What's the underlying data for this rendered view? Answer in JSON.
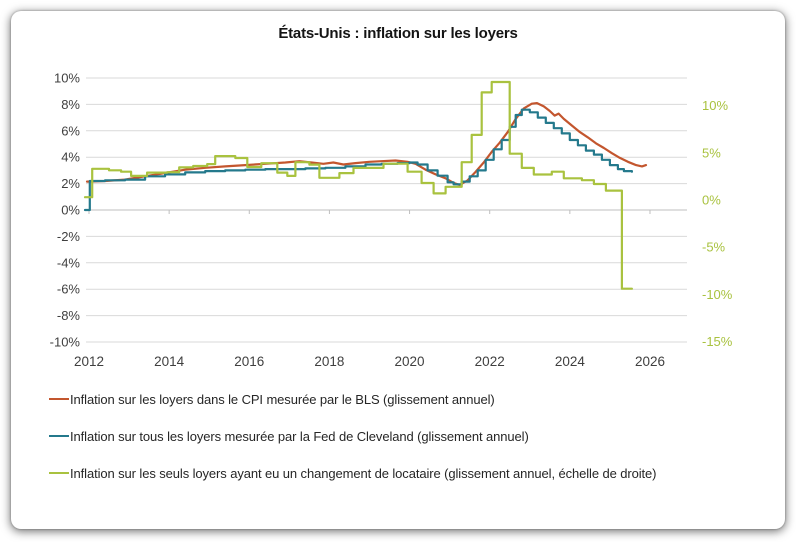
{
  "chart": {
    "title": "États-Unis : inflation sur les loyers"
  },
  "chart_data": {
    "type": "line",
    "title": "États-Unis : inflation sur les loyers",
    "xlabel": "",
    "ylabel_left": "%",
    "ylabel_right": "% (échelle de droite)",
    "grid": "horizontal",
    "legend_position": "bottom-left",
    "x_axis": {
      "ticks": [
        2012,
        2014,
        2016,
        2018,
        2020,
        2022,
        2024,
        2026
      ],
      "range": [
        2011.9,
        2026.9
      ]
    },
    "left_axis": {
      "unit": "%",
      "ticks": [
        10,
        8,
        6,
        4,
        2,
        0,
        -2,
        -4,
        -6,
        -8,
        -10
      ],
      "range": [
        -10,
        10
      ],
      "label_color": "#3f3f3f"
    },
    "right_axis": {
      "unit": "%",
      "ticks": [
        10,
        5,
        0,
        -5,
        -10,
        -15
      ],
      "range": [
        -15,
        13.1
      ],
      "label_color": "#a9c23f"
    },
    "series": [
      {
        "id": "cpi-bls",
        "name": "Inflation sur les loyers dans le CPI mesurée par le BLS (glissement annuel)",
        "color": "#c3562e",
        "axis": "left",
        "style": "linear",
        "points": [
          [
            2011.95,
            2.15
          ],
          [
            2012.4,
            2.2
          ],
          [
            2012.9,
            2.3
          ],
          [
            2013.4,
            2.55
          ],
          [
            2013.9,
            2.8
          ],
          [
            2014.4,
            3.05
          ],
          [
            2014.9,
            3.2
          ],
          [
            2015.4,
            3.3
          ],
          [
            2015.9,
            3.4
          ],
          [
            2016.4,
            3.5
          ],
          [
            2016.9,
            3.6
          ],
          [
            2017.25,
            3.7
          ],
          [
            2017.55,
            3.6
          ],
          [
            2017.85,
            3.5
          ],
          [
            2018.1,
            3.6
          ],
          [
            2018.35,
            3.45
          ],
          [
            2018.65,
            3.55
          ],
          [
            2019.0,
            3.65
          ],
          [
            2019.3,
            3.7
          ],
          [
            2019.65,
            3.75
          ],
          [
            2019.95,
            3.65
          ],
          [
            2020.15,
            3.5
          ],
          [
            2020.4,
            3.05
          ],
          [
            2020.65,
            2.7
          ],
          [
            2020.9,
            2.4
          ],
          [
            2021.1,
            2.05
          ],
          [
            2021.25,
            1.9
          ],
          [
            2021.45,
            2.25
          ],
          [
            2021.65,
            2.9
          ],
          [
            2021.85,
            3.6
          ],
          [
            2022.05,
            4.4
          ],
          [
            2022.25,
            5.1
          ],
          [
            2022.45,
            5.9
          ],
          [
            2022.65,
            6.9
          ],
          [
            2022.85,
            7.7
          ],
          [
            2023.05,
            8.05
          ],
          [
            2023.18,
            8.1
          ],
          [
            2023.35,
            7.85
          ],
          [
            2023.5,
            7.5
          ],
          [
            2023.62,
            7.15
          ],
          [
            2023.72,
            7.3
          ],
          [
            2023.85,
            6.9
          ],
          [
            2024.05,
            6.4
          ],
          [
            2024.25,
            5.9
          ],
          [
            2024.45,
            5.5
          ],
          [
            2024.65,
            5.05
          ],
          [
            2024.85,
            4.7
          ],
          [
            2025.05,
            4.3
          ],
          [
            2025.25,
            3.95
          ],
          [
            2025.45,
            3.65
          ],
          [
            2025.65,
            3.4
          ],
          [
            2025.8,
            3.3
          ],
          [
            2025.9,
            3.4
          ]
        ]
      },
      {
        "id": "cleveland-all-rents",
        "name": "Inflation sur tous les loyers mesurée par la Fed de Cleveland (glissement annuel)",
        "color": "#24798c",
        "axis": "left",
        "style": "step",
        "points": [
          [
            2011.9,
            0.0
          ],
          [
            2012.02,
            2.2
          ],
          [
            2012.4,
            2.25
          ],
          [
            2012.9,
            2.3
          ],
          [
            2013.4,
            2.55
          ],
          [
            2013.9,
            2.7
          ],
          [
            2014.4,
            2.85
          ],
          [
            2014.9,
            2.95
          ],
          [
            2015.4,
            3.0
          ],
          [
            2015.9,
            3.05
          ],
          [
            2016.4,
            3.1
          ],
          [
            2016.9,
            3.1
          ],
          [
            2017.4,
            3.15
          ],
          [
            2017.9,
            3.2
          ],
          [
            2018.4,
            3.3
          ],
          [
            2018.9,
            3.45
          ],
          [
            2019.3,
            3.5
          ],
          [
            2019.7,
            3.55
          ],
          [
            2020.0,
            3.6
          ],
          [
            2020.2,
            3.45
          ],
          [
            2020.45,
            3.0
          ],
          [
            2020.7,
            2.6
          ],
          [
            2020.95,
            2.1
          ],
          [
            2021.1,
            1.95
          ],
          [
            2021.3,
            2.15
          ],
          [
            2021.5,
            2.55
          ],
          [
            2021.7,
            3.0
          ],
          [
            2021.9,
            3.8
          ],
          [
            2022.1,
            4.6
          ],
          [
            2022.3,
            5.3
          ],
          [
            2022.5,
            6.3
          ],
          [
            2022.65,
            7.2
          ],
          [
            2022.8,
            7.6
          ],
          [
            2023.0,
            7.4
          ],
          [
            2023.2,
            7.0
          ],
          [
            2023.4,
            6.6
          ],
          [
            2023.6,
            6.2
          ],
          [
            2023.8,
            5.8
          ],
          [
            2024.0,
            5.3
          ],
          [
            2024.2,
            4.9
          ],
          [
            2024.4,
            4.5
          ],
          [
            2024.6,
            4.2
          ],
          [
            2024.8,
            3.8
          ],
          [
            2025.0,
            3.4
          ],
          [
            2025.2,
            3.1
          ],
          [
            2025.35,
            2.95
          ],
          [
            2025.55,
            2.9
          ]
        ]
      },
      {
        "id": "new-tenant-rents",
        "name": "Inflation sur les seuls loyers ayant eu un changement de locataire (glissement annuel, échelle de droite)",
        "color": "#a9c23f",
        "axis": "right",
        "style": "step",
        "points": [
          [
            2011.9,
            0.3
          ],
          [
            2012.08,
            3.3
          ],
          [
            2012.5,
            3.15
          ],
          [
            2012.8,
            3.0
          ],
          [
            2013.05,
            2.55
          ],
          [
            2013.45,
            2.9
          ],
          [
            2013.95,
            2.95
          ],
          [
            2014.25,
            3.45
          ],
          [
            2014.6,
            3.6
          ],
          [
            2014.95,
            3.8
          ],
          [
            2015.15,
            4.65
          ],
          [
            2015.65,
            4.45
          ],
          [
            2015.95,
            3.5
          ],
          [
            2016.3,
            3.9
          ],
          [
            2016.7,
            2.9
          ],
          [
            2016.95,
            2.55
          ],
          [
            2017.15,
            4.0
          ],
          [
            2017.5,
            3.75
          ],
          [
            2017.75,
            2.35
          ],
          [
            2018.25,
            2.85
          ],
          [
            2018.6,
            3.4
          ],
          [
            2019.35,
            3.85
          ],
          [
            2019.95,
            3.0
          ],
          [
            2020.3,
            1.8
          ],
          [
            2020.6,
            0.7
          ],
          [
            2020.9,
            1.4
          ],
          [
            2021.3,
            4.0
          ],
          [
            2021.55,
            6.9
          ],
          [
            2021.8,
            11.4
          ],
          [
            2022.05,
            12.5
          ],
          [
            2022.5,
            4.9
          ],
          [
            2022.8,
            3.4
          ],
          [
            2023.1,
            2.7
          ],
          [
            2023.55,
            3.0
          ],
          [
            2023.85,
            2.3
          ],
          [
            2024.3,
            2.1
          ],
          [
            2024.6,
            1.7
          ],
          [
            2024.9,
            1.0
          ],
          [
            2025.3,
            -9.4
          ],
          [
            2025.55,
            -9.4
          ]
        ]
      }
    ]
  }
}
